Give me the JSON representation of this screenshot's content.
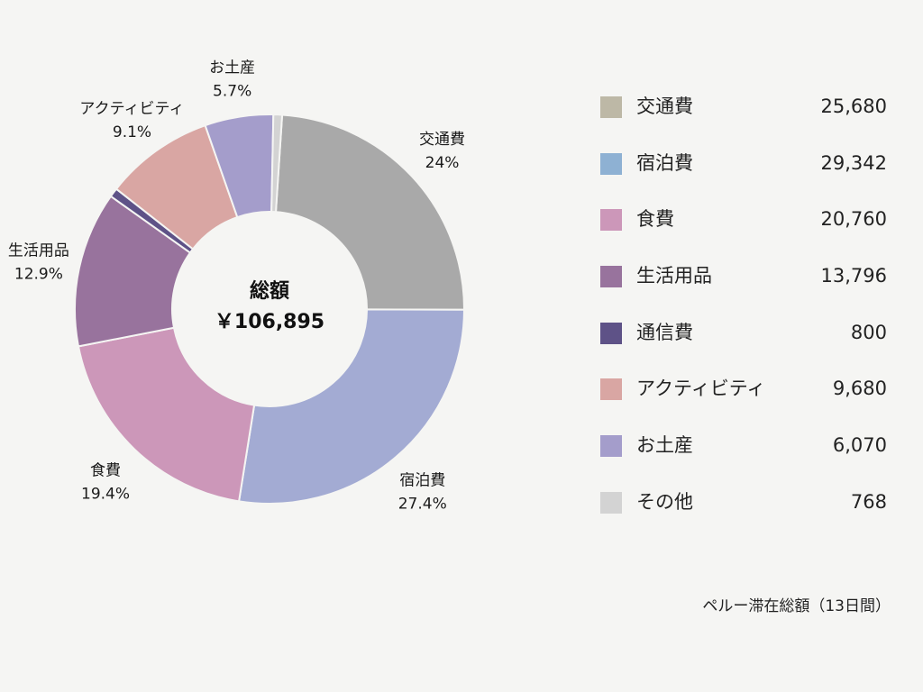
{
  "chart_data": {
    "type": "pie",
    "variant": "donut",
    "center_title": "総額",
    "center_value": "￥106,895",
    "caption": "ペルー滞在総額（13日間）",
    "slices": [
      {
        "name": "交通費",
        "value": 25680,
        "value_label": "25,680",
        "percent_label": "24%",
        "color": "#a9a9a9",
        "legend_color": "#bdb8a6"
      },
      {
        "name": "宿泊費",
        "value": 29342,
        "value_label": "29,342",
        "percent_label": "27.4%",
        "color": "#a3abd3",
        "legend_color": "#8eb1d3"
      },
      {
        "name": "食費",
        "value": 20760,
        "value_label": "20,760",
        "percent_label": "19.4%",
        "color": "#cc97b9",
        "legend_color": "#cc97b9"
      },
      {
        "name": "生活用品",
        "value": 13796,
        "value_label": "13,796",
        "percent_label": "12.9%",
        "color": "#98739d",
        "legend_color": "#98739d"
      },
      {
        "name": "通信費",
        "value": 800,
        "value_label": "800",
        "percent_label": "",
        "color": "#5e5287",
        "legend_color": "#5e5287"
      },
      {
        "name": "アクティビティ",
        "value": 9680,
        "value_label": "9,680",
        "percent_label": "9.1%",
        "color": "#d9a6a3",
        "legend_color": "#d9a6a3"
      },
      {
        "name": "お土産",
        "value": 6070,
        "value_label": "6,070",
        "percent_label": "5.7%",
        "color": "#a49dcb",
        "legend_color": "#a49dcb"
      },
      {
        "name": "その他",
        "value": 768,
        "value_label": "768",
        "percent_label": "",
        "color": "#d3d3d3",
        "legend_color": "#d3d3d3"
      }
    ]
  }
}
